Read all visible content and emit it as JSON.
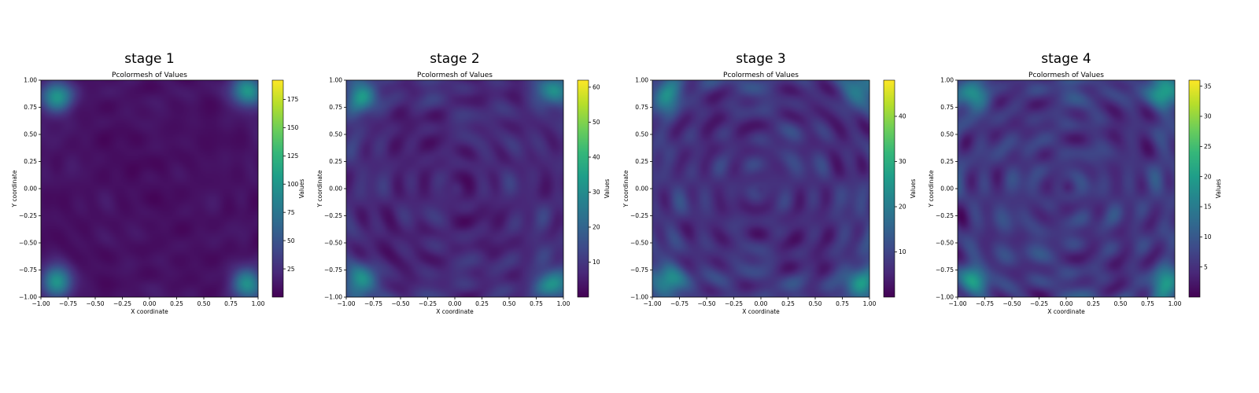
{
  "figure": {
    "cmap_colors": [
      "#440154",
      "#482878",
      "#3e4989",
      "#31688e",
      "#26828e",
      "#1f9e89",
      "#35b779",
      "#6ece58",
      "#b5de2b",
      "#fde725"
    ]
  },
  "chart_data": [
    {
      "type": "heatmap",
      "panel_title": "stage 1",
      "title": "Pcolormesh of Values",
      "xlabel": "X coordinate",
      "ylabel": "Y coordinate",
      "xlim": [
        -1.0,
        1.0
      ],
      "ylim": [
        -1.0,
        1.0
      ],
      "xticks": [
        "−1.00",
        "−0.75",
        "−0.50",
        "−0.25",
        "0.00",
        "0.25",
        "0.50",
        "0.75",
        "1.00"
      ],
      "yticks": [
        "−1.00",
        "−0.75",
        "−0.50",
        "−0.25",
        "0.00",
        "0.25",
        "0.50",
        "0.75",
        "1.00"
      ],
      "colorbar": {
        "label": "Values",
        "min": 0,
        "max": 192,
        "ticks": [
          25,
          50,
          75,
          100,
          125,
          150,
          175
        ]
      },
      "pattern": {
        "corner_strength": 0.85,
        "center_strength": 0.05,
        "wave": 0.15,
        "blob": 0.15
      }
    },
    {
      "type": "heatmap",
      "panel_title": "stage 2",
      "title": "Pcolormesh of Values",
      "xlabel": "X coordinate",
      "ylabel": "Y coordinate",
      "xlim": [
        -1.0,
        1.0
      ],
      "ylim": [
        -1.0,
        1.0
      ],
      "xticks": [
        "−1.00",
        "−0.75",
        "−0.50",
        "−0.25",
        "0.00",
        "0.25",
        "0.50",
        "0.75",
        "1.00"
      ],
      "yticks": [
        "−1.00",
        "−0.75",
        "−0.50",
        "−0.25",
        "0.00",
        "0.25",
        "0.50",
        "0.75",
        "1.00"
      ],
      "colorbar": {
        "label": "Values",
        "min": 0,
        "max": 62,
        "ticks": [
          10,
          20,
          30,
          40,
          50,
          60
        ]
      },
      "pattern": {
        "corner_strength": 0.7,
        "center_strength": 0.3,
        "wave": 0.35,
        "blob": 0.25
      }
    },
    {
      "type": "heatmap",
      "panel_title": "stage 3",
      "title": "Pcolormesh of Values",
      "xlabel": "X coordinate",
      "ylabel": "Y coordinate",
      "xlim": [
        -1.0,
        1.0
      ],
      "ylim": [
        -1.0,
        1.0
      ],
      "xticks": [
        "−1.00",
        "−0.75",
        "−0.50",
        "−0.25",
        "0.00",
        "0.25",
        "0.50",
        "0.75",
        "1.00"
      ],
      "yticks": [
        "−1.00",
        "−0.75",
        "−0.50",
        "−0.25",
        "0.00",
        "0.25",
        "0.50",
        "0.75",
        "1.00"
      ],
      "colorbar": {
        "label": "Values",
        "min": 0,
        "max": 48,
        "ticks": [
          10,
          20,
          30,
          40
        ]
      },
      "pattern": {
        "corner_strength": 0.6,
        "center_strength": 0.4,
        "wave": 0.45,
        "blob": 0.3
      }
    },
    {
      "type": "heatmap",
      "panel_title": "stage 4",
      "title": "Pcolormesh of Values",
      "xlabel": "X coordinate",
      "ylabel": "Y coordinate",
      "xlim": [
        -1.0,
        1.0
      ],
      "ylim": [
        -1.0,
        1.0
      ],
      "xticks": [
        "−1.00",
        "−0.75",
        "−0.50",
        "−0.25",
        "0.00",
        "0.25",
        "0.50",
        "0.75",
        "1.00"
      ],
      "yticks": [
        "−1.00",
        "−0.75",
        "−0.50",
        "−0.25",
        "0.00",
        "0.25",
        "0.50",
        "0.75",
        "1.00"
      ],
      "colorbar": {
        "label": "Values",
        "min": 0,
        "max": 36,
        "ticks": [
          5,
          10,
          15,
          20,
          25,
          30,
          35
        ]
      },
      "pattern": {
        "corner_strength": 0.65,
        "center_strength": 0.45,
        "wave": 0.5,
        "blob": 0.35
      }
    }
  ]
}
